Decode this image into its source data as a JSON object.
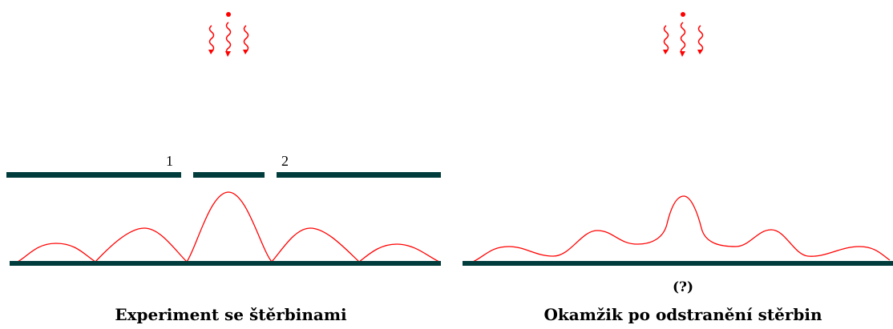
{
  "left_panel": {
    "slit_label_1": "1",
    "slit_label_2": "2",
    "caption": "Experiment se štěrbinami"
  },
  "right_panel": {
    "question_label": "(?)",
    "caption": "Okamžik po odstranění stěrbin"
  },
  "colors": {
    "wave": "#ff0000",
    "barrier": "#003c3c",
    "text": "#000000"
  }
}
